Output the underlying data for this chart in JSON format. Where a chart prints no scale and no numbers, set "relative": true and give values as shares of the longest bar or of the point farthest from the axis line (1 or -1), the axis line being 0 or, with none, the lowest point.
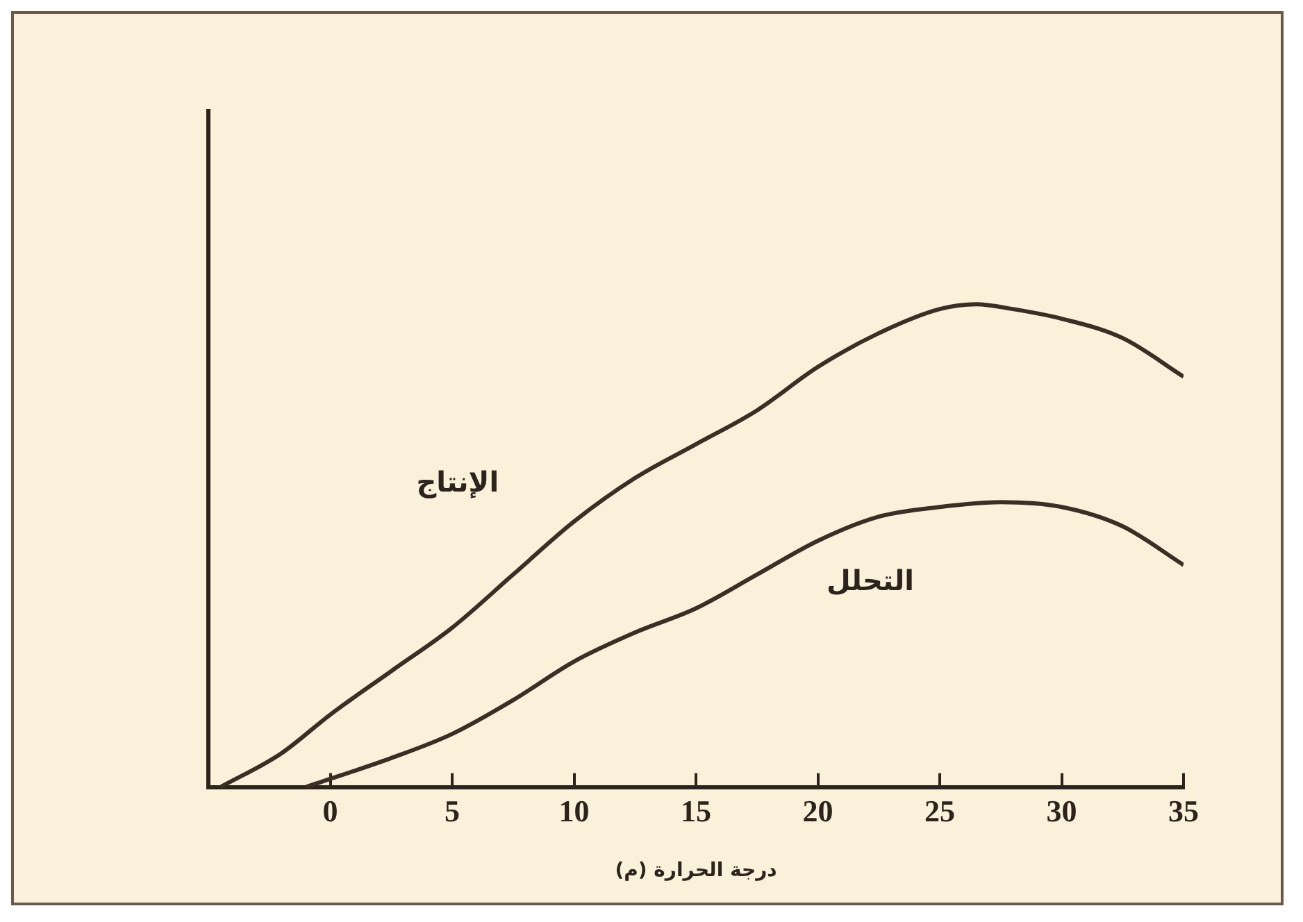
{
  "chart_data": {
    "type": "line",
    "xlabel": "درجة الحرارة (م)",
    "relative": true,
    "xlim": [
      -5,
      35
    ],
    "xticks": [
      {
        "value": -5,
        "label": null
      },
      0,
      5,
      10,
      15,
      20,
      25,
      30,
      35
    ],
    "marker": "none",
    "line_style": "solid",
    "grid": false,
    "legend": false,
    "series": [
      {
        "name": "الإنتاج",
        "color": "#3a2e25",
        "x": [
          -4.5,
          -2,
          0,
          2.5,
          5,
          7.5,
          10,
          12.5,
          15,
          17.5,
          20,
          22.5,
          25,
          26.5,
          28,
          30,
          32.5,
          35
        ],
        "values": [
          0,
          0.07,
          0.15,
          0.24,
          0.33,
          0.44,
          0.55,
          0.64,
          0.71,
          0.78,
          0.87,
          0.94,
          0.99,
          1,
          0.99,
          0.97,
          0.93,
          0.85
        ]
      },
      {
        "name": "التحلل",
        "color": "#3a2e25",
        "x": [
          -1,
          2.5,
          5,
          7.5,
          10,
          12.5,
          15,
          17.5,
          20,
          22.5,
          25,
          27.5,
          30,
          32.5,
          35
        ],
        "values": [
          0,
          0.06,
          0.11,
          0.18,
          0.26,
          0.32,
          0.37,
          0.44,
          0.51,
          0.56,
          0.58,
          0.59,
          0.58,
          0.54,
          0.46
        ]
      }
    ]
  }
}
